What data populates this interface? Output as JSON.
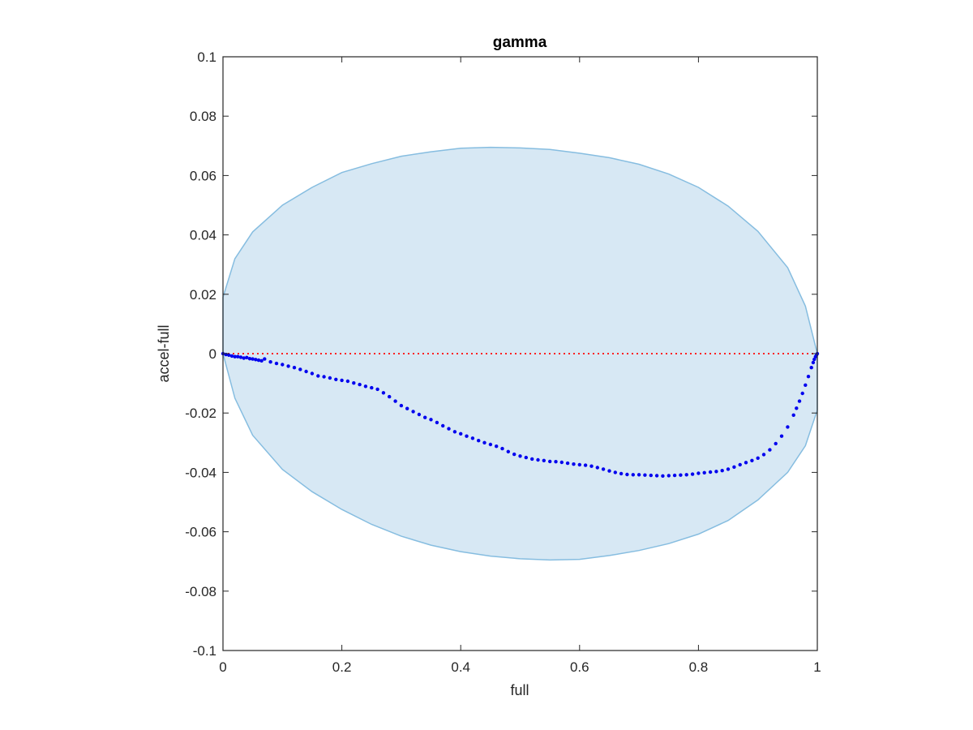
{
  "chart_data": {
    "type": "scatter",
    "title": "gamma",
    "xlabel": "full",
    "ylabel": "accel-full",
    "xlim": [
      0,
      1
    ],
    "ylim": [
      -0.1,
      0.1
    ],
    "xticks": [
      0,
      0.2,
      0.4,
      0.6,
      0.8,
      1
    ],
    "xtick_labels": [
      "0",
      "0.2",
      "0.4",
      "0.6",
      "0.8",
      "1"
    ],
    "yticks": [
      0.1,
      0.08,
      0.06,
      0.04,
      0.02,
      0,
      -0.02,
      -0.04,
      -0.06,
      -0.08,
      -0.1
    ],
    "ytick_labels": [
      "0.1",
      "0.08",
      "0.06",
      "0.04",
      "0.02",
      "0",
      "-0.02",
      "-0.04",
      "-0.06",
      "-0.08",
      "-0.1"
    ],
    "grid": false,
    "colors": {
      "points": "#0000ee",
      "reference_line": "#ff2020",
      "region_fill": "#d7e8f4",
      "region_edge": "#86bde0",
      "axes": "#262626"
    },
    "reference_line": {
      "y": 0,
      "style": "dotted"
    },
    "region_bounds": {
      "x": [
        0,
        0.02,
        0.05,
        0.1,
        0.15,
        0.2,
        0.25,
        0.3,
        0.35,
        0.4,
        0.45,
        0.5,
        0.55,
        0.6,
        0.65,
        0.7,
        0.75,
        0.8,
        0.85,
        0.9,
        0.95,
        0.98,
        1
      ],
      "upper": [
        0.019,
        0.032,
        0.041,
        0.05,
        0.056,
        0.061,
        0.064,
        0.0665,
        0.068,
        0.0692,
        0.0695,
        0.0693,
        0.0688,
        0.0675,
        0.066,
        0.0638,
        0.0605,
        0.056,
        0.0497,
        0.0412,
        0.029,
        0.016,
        0.0
      ],
      "lower": [
        0.0,
        -0.015,
        -0.0275,
        -0.039,
        -0.0465,
        -0.0525,
        -0.0575,
        -0.0615,
        -0.0645,
        -0.0667,
        -0.0682,
        -0.0691,
        -0.0695,
        -0.0693,
        -0.068,
        -0.0663,
        -0.064,
        -0.0608,
        -0.0562,
        -0.0493,
        -0.04,
        -0.031,
        -0.019
      ]
    },
    "series": [
      {
        "x": [
          0,
          0.005,
          0.01,
          0.015,
          0.02,
          0.025,
          0.03,
          0.035,
          0.04,
          0.045,
          0.05,
          0.055,
          0.06,
          0.065,
          0.07,
          0.08,
          0.09,
          0.1,
          0.11,
          0.12,
          0.13,
          0.14,
          0.15,
          0.16,
          0.17,
          0.18,
          0.19,
          0.2,
          0.21,
          0.22,
          0.23,
          0.24,
          0.25,
          0.26,
          0.27,
          0.28,
          0.29,
          0.3,
          0.31,
          0.32,
          0.33,
          0.34,
          0.35,
          0.36,
          0.37,
          0.38,
          0.39,
          0.4,
          0.41,
          0.42,
          0.43,
          0.44,
          0.45,
          0.46,
          0.47,
          0.48,
          0.49,
          0.5,
          0.51,
          0.52,
          0.53,
          0.54,
          0.55,
          0.56,
          0.57,
          0.58,
          0.59,
          0.6,
          0.61,
          0.62,
          0.63,
          0.64,
          0.65,
          0.66,
          0.67,
          0.68,
          0.69,
          0.7,
          0.71,
          0.72,
          0.73,
          0.74,
          0.75,
          0.76,
          0.77,
          0.78,
          0.79,
          0.8,
          0.81,
          0.82,
          0.83,
          0.84,
          0.85,
          0.86,
          0.87,
          0.88,
          0.89,
          0.9,
          0.91,
          0.92,
          0.93,
          0.94,
          0.95,
          0.96,
          0.965,
          0.97,
          0.975,
          0.98,
          0.985,
          0.99,
          0.993,
          0.995,
          0.997,
          0.999,
          1.0
        ],
        "y": [
          0,
          -0.0003,
          -0.0005,
          -0.0008,
          -0.001,
          -0.001,
          -0.0012,
          -0.0015,
          -0.0013,
          -0.0017,
          -0.0018,
          -0.002,
          -0.0022,
          -0.0024,
          -0.0018,
          -0.0028,
          -0.0033,
          -0.0037,
          -0.0042,
          -0.0047,
          -0.0053,
          -0.006,
          -0.0067,
          -0.0075,
          -0.0078,
          -0.0082,
          -0.0087,
          -0.009,
          -0.0093,
          -0.0099,
          -0.0104,
          -0.011,
          -0.0115,
          -0.012,
          -0.0132,
          -0.0145,
          -0.016,
          -0.0175,
          -0.0185,
          -0.0195,
          -0.0205,
          -0.0215,
          -0.0222,
          -0.0232,
          -0.0243,
          -0.0253,
          -0.0263,
          -0.027,
          -0.0278,
          -0.0285,
          -0.0293,
          -0.03,
          -0.0306,
          -0.0312,
          -0.032,
          -0.033,
          -0.0339,
          -0.0345,
          -0.035,
          -0.0355,
          -0.0358,
          -0.036,
          -0.0363,
          -0.0364,
          -0.0366,
          -0.0369,
          -0.0372,
          -0.0374,
          -0.0376,
          -0.0379,
          -0.0384,
          -0.0389,
          -0.0395,
          -0.04,
          -0.0404,
          -0.0407,
          -0.0408,
          -0.0408,
          -0.0409,
          -0.041,
          -0.0411,
          -0.0412,
          -0.0411,
          -0.041,
          -0.0409,
          -0.0408,
          -0.0406,
          -0.0403,
          -0.0401,
          -0.0399,
          -0.0397,
          -0.0394,
          -0.0389,
          -0.0382,
          -0.0374,
          -0.0367,
          -0.036,
          -0.0352,
          -0.034,
          -0.0324,
          -0.0303,
          -0.0278,
          -0.0247,
          -0.0207,
          -0.0184,
          -0.016,
          -0.0134,
          -0.0106,
          -0.0077,
          -0.0047,
          -0.003,
          -0.0019,
          -0.001,
          -0.0003,
          0
        ]
      }
    ]
  }
}
